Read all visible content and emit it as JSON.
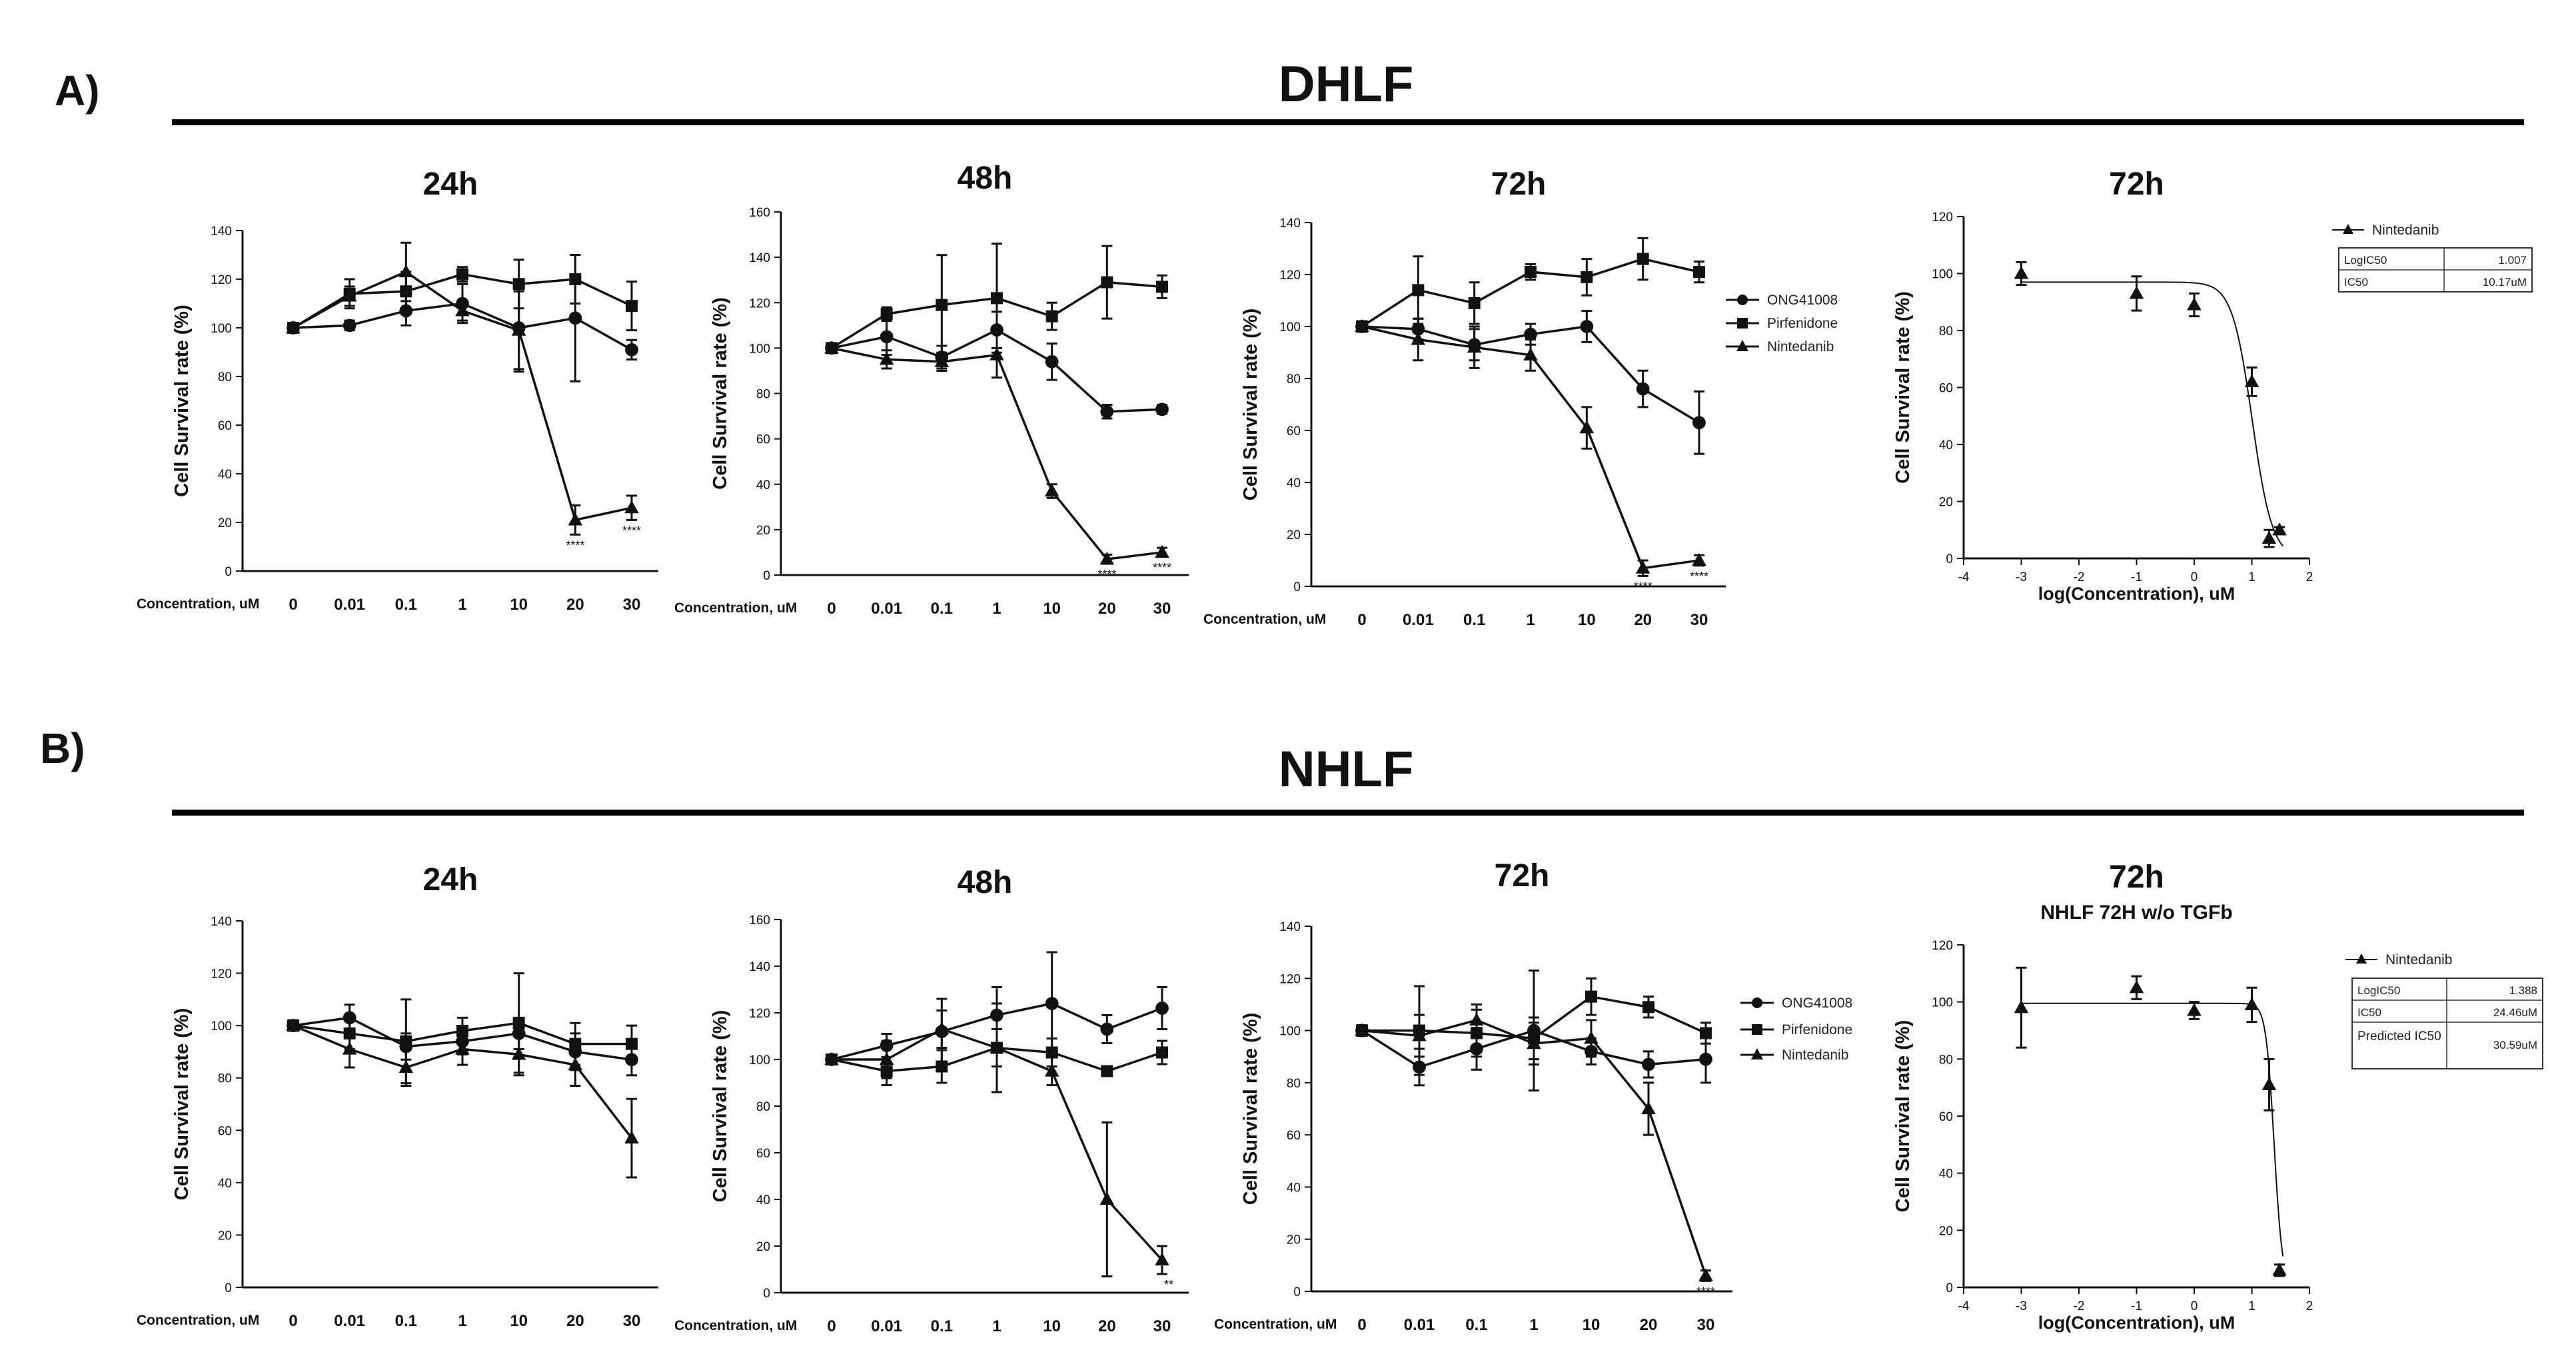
{
  "sections": [
    {
      "label": "A)",
      "title": "DHLF",
      "legend": [
        "ONG41008",
        "Pirfenidone",
        "Nintedanib"
      ],
      "ic50_legend": "Nintedanib",
      "ic50_table": [
        [
          "LogIC50",
          "1.007"
        ],
        [
          "IC50",
          "10.17uM"
        ]
      ]
    },
    {
      "label": "B)",
      "title": "NHLF",
      "legend": [
        "ONG41008",
        "Pirfenidone",
        "Nintedanib"
      ],
      "ic50_legend": "Nintedanib",
      "ic50_table": [
        [
          "LogIC50",
          "1.388"
        ],
        [
          "IC50",
          "24.46uM"
        ],
        [
          "Predicted IC50",
          "30.59uM"
        ]
      ]
    }
  ],
  "colors": {
    "ink": "#111111",
    "rule": "#000000"
  },
  "chart_data": [
    {
      "id": "A-24h",
      "type": "line",
      "title": "24h",
      "xlabel": "Concentration, uM",
      "ylabel": "Cell Survival rate (%)",
      "categories": [
        "0",
        "0.01",
        "0.1",
        "1",
        "10",
        "20",
        "30"
      ],
      "ylim": [
        0,
        140
      ],
      "yticks": [
        0,
        20,
        40,
        60,
        80,
        100,
        120,
        140
      ],
      "series": [
        {
          "name": "ONG41008",
          "marker": "circle",
          "values": [
            100,
            101,
            107,
            110,
            100,
            104,
            91
          ],
          "errors": [
            2,
            2,
            6,
            8,
            18,
            26,
            4
          ]
        },
        {
          "name": "Pirfenidone",
          "marker": "square",
          "values": [
            100,
            114,
            115,
            122,
            118,
            120,
            109
          ],
          "errors": [
            2,
            6,
            8,
            3,
            10,
            10,
            10
          ]
        },
        {
          "name": "Nintedanib",
          "marker": "triangle",
          "values": [
            100,
            113,
            123,
            107,
            99,
            21,
            26
          ],
          "errors": [
            2,
            4,
            12,
            4,
            16,
            6,
            5
          ]
        }
      ],
      "annotations": [
        {
          "category": "20",
          "text": "****"
        },
        {
          "category": "30",
          "text": "****"
        }
      ]
    },
    {
      "id": "A-48h",
      "type": "line",
      "title": "48h",
      "xlabel": "Concentration, uM",
      "ylabel": "Cell Survival rate (%)",
      "categories": [
        "0",
        "0.01",
        "0.1",
        "1",
        "10",
        "20",
        "30"
      ],
      "ylim": [
        0,
        160
      ],
      "yticks": [
        0,
        20,
        40,
        60,
        80,
        100,
        120,
        140,
        160
      ],
      "series": [
        {
          "name": "ONG41008",
          "marker": "circle",
          "values": [
            100,
            105,
            96,
            108,
            94,
            72,
            73
          ],
          "errors": [
            2,
            8,
            5,
            8,
            8,
            3,
            2
          ]
        },
        {
          "name": "Pirfenidone",
          "marker": "square",
          "values": [
            100,
            115,
            119,
            122,
            114,
            129,
            127
          ],
          "errors": [
            2,
            3,
            22,
            24,
            6,
            16,
            5
          ]
        },
        {
          "name": "Nintedanib",
          "marker": "triangle",
          "values": [
            100,
            95,
            94,
            97,
            37,
            7,
            10
          ],
          "errors": [
            2,
            4,
            4,
            10,
            3,
            2,
            2
          ]
        }
      ],
      "annotations": [
        {
          "category": "20",
          "text": "****"
        },
        {
          "category": "30",
          "text": "****"
        }
      ]
    },
    {
      "id": "A-72h",
      "type": "line",
      "title": "72h",
      "xlabel": "Concentration, uM",
      "ylabel": "Cell Survival rate (%)",
      "categories": [
        "0",
        "0.01",
        "0.1",
        "1",
        "10",
        "20",
        "30"
      ],
      "ylim": [
        0,
        140
      ],
      "yticks": [
        0,
        20,
        40,
        60,
        80,
        100,
        120,
        140
      ],
      "series": [
        {
          "name": "ONG41008",
          "marker": "circle",
          "values": [
            100,
            99,
            93,
            97,
            100,
            76,
            63
          ],
          "errors": [
            2,
            4,
            6,
            4,
            6,
            7,
            12
          ]
        },
        {
          "name": "Pirfenidone",
          "marker": "square",
          "values": [
            100,
            114,
            109,
            121,
            119,
            126,
            121
          ],
          "errors": [
            2,
            13,
            8,
            3,
            7,
            8,
            4
          ]
        },
        {
          "name": "Nintedanib",
          "marker": "triangle",
          "values": [
            100,
            95,
            92,
            89,
            61,
            7,
            10
          ],
          "errors": [
            2,
            8,
            8,
            6,
            8,
            3,
            2
          ]
        }
      ],
      "annotations": [
        {
          "category": "20",
          "text": "****"
        },
        {
          "category": "30",
          "text": "****"
        }
      ]
    },
    {
      "id": "A-ic50",
      "type": "scatter",
      "title": "72h",
      "xlabel": "log(Concentration), uM",
      "ylabel": "Cell Survival rate (%)",
      "xlim": [
        -4,
        2
      ],
      "xticks": [
        -4,
        -3,
        -2,
        -1,
        0,
        1,
        2
      ],
      "ylim": [
        0,
        120
      ],
      "yticks": [
        0,
        20,
        40,
        60,
        80,
        100,
        120
      ],
      "series": [
        {
          "name": "Nintedanib",
          "marker": "triangle",
          "x": [
            -3,
            -1,
            0,
            1,
            1.3,
            1.48
          ],
          "values": [
            100,
            93,
            89,
            62,
            7,
            10
          ],
          "errors": [
            4,
            6,
            4,
            5,
            3,
            1
          ]
        }
      ],
      "fit": {
        "top": 97,
        "bottom": 0,
        "logIC50": 1.007,
        "hill": -2.5
      }
    },
    {
      "id": "B-24h",
      "type": "line",
      "title": "24h",
      "xlabel": "Concentration, uM",
      "ylabel": "Cell Survival rate (%)",
      "categories": [
        "0",
        "0.01",
        "0.1",
        "1",
        "10",
        "20",
        "30"
      ],
      "ylim": [
        0,
        140
      ],
      "yticks": [
        0,
        20,
        40,
        60,
        80,
        100,
        120,
        140
      ],
      "series": [
        {
          "name": "ONG41008",
          "marker": "circle",
          "values": [
            100,
            103,
            92,
            94,
            97,
            90,
            87
          ],
          "errors": [
            2,
            5,
            5,
            5,
            6,
            7,
            6
          ]
        },
        {
          "name": "Pirfenidone",
          "marker": "square",
          "values": [
            100,
            97,
            94,
            98,
            101,
            93,
            93
          ],
          "errors": [
            2,
            6,
            16,
            5,
            19,
            8,
            7
          ]
        },
        {
          "name": "Nintedanib",
          "marker": "triangle",
          "values": [
            100,
            91,
            84,
            91,
            89,
            85,
            57
          ],
          "errors": [
            2,
            7,
            7,
            6,
            8,
            8,
            15
          ]
        }
      ],
      "annotations": []
    },
    {
      "id": "B-48h",
      "type": "line",
      "title": "48h",
      "xlabel": "Concentration, uM",
      "ylabel": "Cell Survival rate (%)",
      "categories": [
        "0",
        "0.01",
        "0.1",
        "1",
        "10",
        "20",
        "30"
      ],
      "ylim": [
        0,
        160
      ],
      "yticks": [
        0,
        20,
        40,
        60,
        80,
        100,
        120,
        140,
        160
      ],
      "series": [
        {
          "name": "ONG41008",
          "marker": "circle",
          "values": [
            100,
            106,
            112,
            119,
            124,
            113,
            122
          ],
          "errors": [
            2,
            5,
            14,
            12,
            22,
            6,
            9
          ]
        },
        {
          "name": "Pirfenidone",
          "marker": "square",
          "values": [
            100,
            95,
            97,
            105,
            103,
            95,
            103
          ],
          "errors": [
            2,
            6,
            7,
            19,
            6,
            2,
            5
          ]
        },
        {
          "name": "Nintedanib",
          "marker": "triangle",
          "values": [
            100,
            100,
            113,
            105,
            95,
            40,
            14
          ],
          "errors": [
            2,
            8,
            8,
            8,
            6,
            33,
            6
          ]
        }
      ],
      "annotations": [
        {
          "category": "30",
          "text": "**"
        }
      ]
    },
    {
      "id": "B-72h",
      "type": "line",
      "title": "72h",
      "xlabel": "Concentration, uM",
      "ylabel": "Cell Survival rate (%)",
      "categories": [
        "0",
        "0.01",
        "0.1",
        "1",
        "10",
        "20",
        "30"
      ],
      "ylim": [
        0,
        140
      ],
      "yticks": [
        0,
        20,
        40,
        60,
        80,
        100,
        120,
        140
      ],
      "series": [
        {
          "name": "ONG41008",
          "marker": "circle",
          "values": [
            100,
            86,
            93,
            100,
            92,
            87,
            89
          ],
          "errors": [
            2,
            7,
            8,
            23,
            5,
            5,
            9
          ]
        },
        {
          "name": "Pirfenidone",
          "marker": "square",
          "values": [
            100,
            100,
            99,
            97,
            113,
            109,
            99
          ],
          "errors": [
            2,
            17,
            9,
            8,
            7,
            4,
            4
          ]
        },
        {
          "name": "Nintedanib",
          "marker": "triangle",
          "values": [
            100,
            98,
            104,
            95,
            97,
            70,
            6
          ],
          "errors": [
            2,
            8,
            6,
            8,
            7,
            10,
            2
          ]
        }
      ],
      "annotations": [
        {
          "category": "30",
          "text": "****"
        }
      ]
    },
    {
      "id": "B-ic50",
      "type": "scatter",
      "title": "72h",
      "subtitle": "NHLF 72H w/o TGFb",
      "xlabel": "log(Concentration), uM",
      "ylabel": "Cell Survival rate (%)",
      "xlim": [
        -4,
        2
      ],
      "xticks": [
        -4,
        -3,
        -2,
        -1,
        0,
        1,
        2
      ],
      "ylim": [
        0,
        120
      ],
      "yticks": [
        0,
        20,
        40,
        60,
        80,
        100,
        120
      ],
      "series": [
        {
          "name": "Nintedanib",
          "marker": "triangle",
          "x": [
            -3,
            -1,
            0,
            1,
            1.3,
            1.48
          ],
          "values": [
            98,
            105,
            97,
            99,
            71,
            6
          ],
          "errors": [
            14,
            4,
            3,
            6,
            9,
            2
          ]
        }
      ],
      "fit": {
        "top": 99.5,
        "bottom": 0,
        "logIC50": 1.388,
        "hill": -6
      }
    }
  ]
}
